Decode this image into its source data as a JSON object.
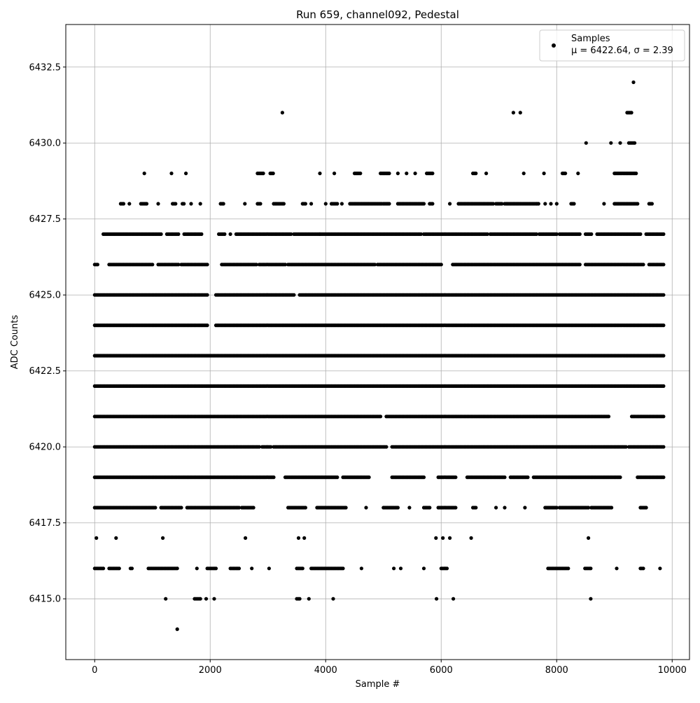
{
  "chart_data": {
    "type": "scatter",
    "title": "Run 659, channel092, Pedestal",
    "xlabel": "Sample #",
    "ylabel": "ADC Counts",
    "xlim": [
      -500,
      10300
    ],
    "ylim": [
      6413.0,
      6433.9
    ],
    "xticks": [
      0,
      2000,
      4000,
      6000,
      8000,
      10000
    ],
    "xtick_labels": [
      "0",
      "2000",
      "4000",
      "6000",
      "8000",
      "10000"
    ],
    "yticks": [
      6415.0,
      6417.5,
      6420.0,
      6422.5,
      6425.0,
      6427.5,
      6430.0,
      6432.5
    ],
    "ytick_labels": [
      "6415.0",
      "6417.5",
      "6420.0",
      "6422.5",
      "6425.0",
      "6427.5",
      "6430.0",
      "6432.5"
    ],
    "grid": true,
    "legend": {
      "placement": "top-right",
      "entries": [
        {
          "label": "Samples",
          "stat_line": "μ = 6422.64, σ = 2.39"
        }
      ]
    },
    "x_range": [
      0,
      9850
    ],
    "level_x_ranges": {
      "6432": [
        [
          9330,
          9330
        ]
      ],
      "6431": [
        [
          3250,
          3250
        ],
        [
          7250,
          7250
        ],
        [
          7370,
          7370
        ],
        [
          9220,
          9300
        ]
      ],
      "6430": [
        [
          8510,
          8510
        ],
        [
          8940,
          8940
        ],
        [
          9100,
          9100
        ],
        [
          9250,
          9350
        ]
      ],
      "6429": [
        [
          860,
          880
        ],
        [
          1330,
          1330
        ],
        [
          1580,
          1580
        ],
        [
          2820,
          2940
        ],
        [
          3040,
          3100
        ],
        [
          3900,
          3900
        ],
        [
          4150,
          4150
        ],
        [
          4500,
          4600
        ],
        [
          4950,
          5100
        ],
        [
          5250,
          5250
        ],
        [
          5400,
          5400
        ],
        [
          5550,
          5550
        ],
        [
          5750,
          5850
        ],
        [
          6550,
          6620
        ],
        [
          6780,
          6780
        ],
        [
          7430,
          7430
        ],
        [
          7780,
          7780
        ],
        [
          8100,
          8150
        ],
        [
          8370,
          8370
        ],
        [
          9000,
          9380
        ]
      ],
      "6428": [
        [
          450,
          500
        ],
        [
          600,
          600
        ],
        [
          800,
          900
        ],
        [
          1100,
          1100
        ],
        [
          1350,
          1400
        ],
        [
          1520,
          1560
        ],
        [
          1670,
          1670
        ],
        [
          1830,
          1830
        ],
        [
          2180,
          2250
        ],
        [
          2600,
          2600
        ],
        [
          2820,
          2880
        ],
        [
          3100,
          3280
        ],
        [
          3600,
          3650
        ],
        [
          3750,
          3750
        ],
        [
          4000,
          4000
        ],
        [
          4100,
          4200
        ],
        [
          4280,
          4280
        ],
        [
          4420,
          4980
        ],
        [
          5000,
          5120
        ],
        [
          5250,
          5700
        ],
        [
          5800,
          5850
        ],
        [
          6150,
          6150
        ],
        [
          6300,
          6900
        ],
        [
          6950,
          7050
        ],
        [
          7100,
          7660
        ],
        [
          7660,
          7700
        ],
        [
          7800,
          7800
        ],
        [
          7900,
          7900
        ],
        [
          8000,
          8000
        ],
        [
          8250,
          8300
        ],
        [
          8820,
          8820
        ],
        [
          9000,
          9400
        ],
        [
          9600,
          9650
        ]
      ],
      "6427": [
        [
          150,
          1150
        ],
        [
          1250,
          1450
        ],
        [
          1550,
          1850
        ],
        [
          2150,
          2250
        ],
        [
          2350,
          2350
        ],
        [
          2450,
          3400
        ],
        [
          3450,
          3900
        ],
        [
          3900,
          5650
        ],
        [
          5700,
          6800
        ],
        [
          6850,
          7650
        ],
        [
          7700,
          8000
        ],
        [
          8050,
          8400
        ],
        [
          8500,
          8600
        ],
        [
          8700,
          9450
        ],
        [
          9550,
          9850
        ]
      ],
      "6426": [
        [
          0,
          50
        ],
        [
          250,
          1000
        ],
        [
          1100,
          1450
        ],
        [
          1500,
          1950
        ],
        [
          2200,
          2800
        ],
        [
          2850,
          3300
        ],
        [
          3350,
          4850
        ],
        [
          4900,
          6000
        ],
        [
          6200,
          8400
        ],
        [
          8500,
          9500
        ],
        [
          9600,
          9850
        ]
      ],
      "6425": [
        [
          0,
          1950
        ],
        [
          2100,
          3450
        ],
        [
          3550,
          9850
        ]
      ],
      "6424": [
        [
          0,
          1950
        ],
        [
          2100,
          9850
        ]
      ],
      "6423": [
        [
          0,
          9850
        ]
      ],
      "6422": [
        [
          0,
          9850
        ]
      ],
      "6421": [
        [
          0,
          4950
        ],
        [
          5050,
          8900
        ],
        [
          9300,
          9850
        ]
      ],
      "6420": [
        [
          0,
          2850
        ],
        [
          2900,
          3050
        ],
        [
          3100,
          5050
        ],
        [
          5150,
          9200
        ],
        [
          9250,
          9850
        ]
      ],
      "6419": [
        [
          0,
          3100
        ],
        [
          3300,
          4200
        ],
        [
          4300,
          4750
        ],
        [
          5150,
          5700
        ],
        [
          5950,
          6250
        ],
        [
          6450,
          7100
        ],
        [
          7200,
          7500
        ],
        [
          7600,
          9100
        ],
        [
          9400,
          9850
        ]
      ],
      "6418": [
        [
          0,
          1050
        ],
        [
          1150,
          1500
        ],
        [
          1600,
          2500
        ],
        [
          2550,
          2750
        ],
        [
          3350,
          3650
        ],
        [
          3850,
          4350
        ],
        [
          4700,
          4700
        ],
        [
          5000,
          5250
        ],
        [
          5450,
          5450
        ],
        [
          5700,
          5800
        ],
        [
          5950,
          6250
        ],
        [
          6550,
          6600
        ],
        [
          6950,
          6950
        ],
        [
          7100,
          7100
        ],
        [
          7450,
          7450
        ],
        [
          7800,
          8000
        ],
        [
          8050,
          8550
        ],
        [
          8600,
          8950
        ],
        [
          9450,
          9550
        ]
      ],
      "6417": [
        [
          30,
          50
        ],
        [
          370,
          370
        ],
        [
          1180,
          1180
        ],
        [
          2610,
          2610
        ],
        [
          3530,
          3530
        ],
        [
          3630,
          3630
        ],
        [
          5910,
          5910
        ],
        [
          6030,
          6030
        ],
        [
          6150,
          6150
        ],
        [
          6520,
          6520
        ],
        [
          8550,
          8550
        ]
      ],
      "6416": [
        [
          0,
          150
        ],
        [
          250,
          430
        ],
        [
          620,
          650
        ],
        [
          930,
          1450
        ],
        [
          1770,
          1770
        ],
        [
          1950,
          2100
        ],
        [
          2350,
          2500
        ],
        [
          2720,
          2720
        ],
        [
          3020,
          3020
        ],
        [
          3500,
          3600
        ],
        [
          3750,
          4300
        ],
        [
          4620,
          4620
        ],
        [
          5180,
          5180
        ],
        [
          5300,
          5300
        ],
        [
          5700,
          5700
        ],
        [
          6000,
          6100
        ],
        [
          7850,
          8200
        ],
        [
          8490,
          8600
        ],
        [
          9040,
          9040
        ],
        [
          9450,
          9500
        ],
        [
          9790,
          9790
        ]
      ],
      "6415": [
        [
          1230,
          1230
        ],
        [
          1730,
          1850
        ],
        [
          1930,
          1930
        ],
        [
          2070,
          2070
        ],
        [
          3500,
          3550
        ],
        [
          3710,
          3710
        ],
        [
          4130,
          4130
        ],
        [
          5920,
          5920
        ],
        [
          6210,
          6210
        ],
        [
          8590,
          8590
        ]
      ],
      "6414": [
        [
          1430,
          1430
        ]
      ]
    }
  }
}
